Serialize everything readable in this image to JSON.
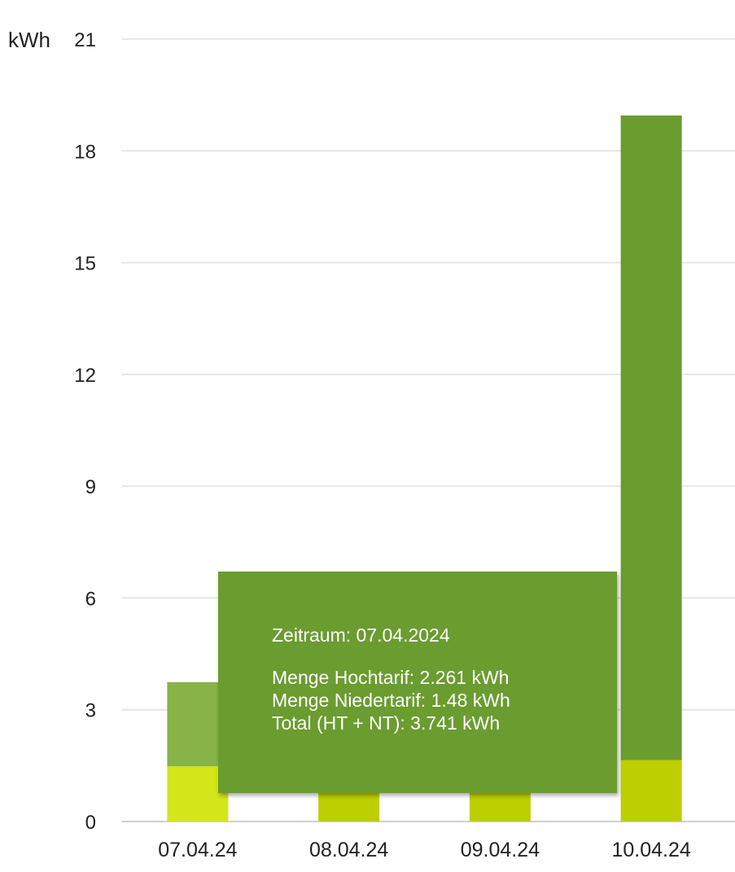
{
  "chart_data": {
    "type": "bar",
    "stacked": true,
    "ylabel": "kWh",
    "ylim": [
      0,
      21
    ],
    "yticks": [
      0,
      3,
      6,
      9,
      12,
      15,
      18,
      21
    ],
    "grid": true,
    "categories": [
      "07.04.24",
      "08.04.24",
      "09.04.24",
      "10.04.24"
    ],
    "series": [
      {
        "key": "nt",
        "values": [
          1.48,
          0.8,
          0.8,
          1.65
        ]
      },
      {
        "key": "ht",
        "values": [
          2.261,
          0,
          0,
          17.3
        ]
      }
    ]
  },
  "colors": {
    "nt": "#bccf00",
    "nt_highlight": "#d4e51a",
    "ht": "#6b9c2f",
    "ht_highlight": "#87b347",
    "grid": "#e6e6e6",
    "tooltip_bg": "#6b9c2f"
  },
  "highlight_index": 0,
  "tooltip": {
    "period": "Zeitraum: 07.04.2024",
    "ht": "Menge Hochtarif: 2.261 kWh",
    "nt": "Menge Niedertarif: 1.48 kWh",
    "total": "Total (HT + NT): 3.741 kWh"
  }
}
